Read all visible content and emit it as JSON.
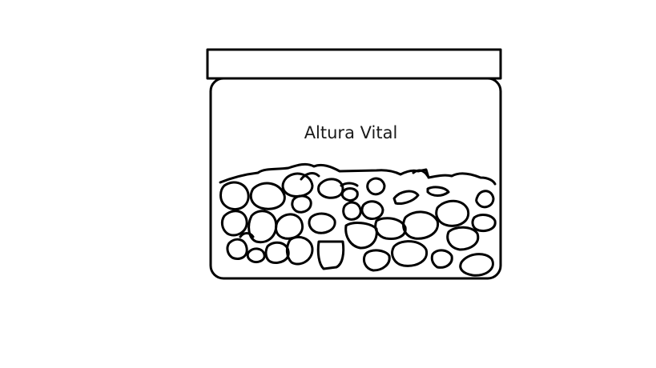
{
  "jar": {
    "label": "Altura Vital"
  },
  "colors": {
    "ink": "#000000",
    "background": "#ffffff",
    "text": "#1a1a1a"
  }
}
